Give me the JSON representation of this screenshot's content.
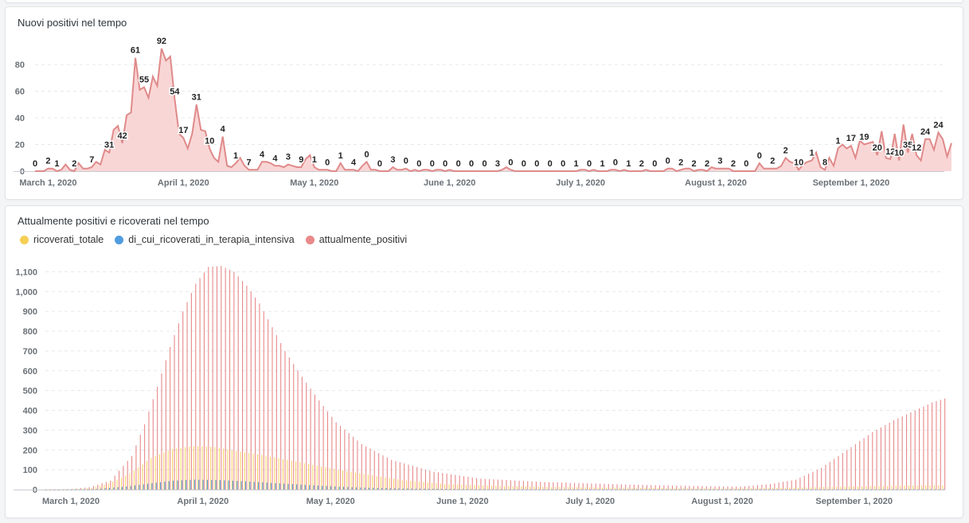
{
  "colors": {
    "positivi_line": "#e08a8a",
    "positivi_fill": "#f9d6d6",
    "ricoverati": "#f5cf55",
    "terapia_intensiva": "#4f9de0",
    "attualmente_positivi": "#e8898a",
    "grid": "#e6e8eb"
  },
  "chart_data": [
    {
      "type": "area",
      "title": "Nuovi positivi nel tempo",
      "x_start": "2020-02-27",
      "x_end": "2020-09-22",
      "xticks": [
        {
          "date": "2020-03-01",
          "label": "March 1, 2020"
        },
        {
          "date": "2020-04-01",
          "label": "April 1, 2020"
        },
        {
          "date": "2020-05-01",
          "label": "May 1, 2020"
        },
        {
          "date": "2020-06-01",
          "label": "June 1, 2020"
        },
        {
          "date": "2020-07-01",
          "label": "July 1, 2020"
        },
        {
          "date": "2020-08-01",
          "label": "August 1, 2020"
        },
        {
          "date": "2020-09-01",
          "label": "September 1, 2020"
        }
      ],
      "yticks": [
        0,
        20,
        40,
        60,
        80
      ],
      "ylim": [
        0,
        92
      ],
      "grid": true,
      "series": [
        {
          "values": [
            0,
            0,
            0,
            2,
            2,
            0,
            1,
            5,
            1,
            0,
            6,
            2,
            2,
            3,
            7,
            5,
            16,
            14,
            31,
            34,
            21,
            42,
            44,
            85,
            61,
            63,
            55,
            71,
            64,
            92,
            83,
            86,
            54,
            28,
            25,
            17,
            28,
            50,
            31,
            30,
            17,
            10,
            7,
            26,
            4,
            3,
            6,
            10,
            4,
            1,
            1,
            1,
            7,
            7,
            6,
            4,
            4,
            3,
            5,
            4,
            3,
            3,
            9,
            12,
            3,
            1,
            1,
            1,
            0,
            0,
            6,
            1,
            1,
            1,
            0,
            4,
            7,
            1,
            1,
            0,
            0,
            0,
            3,
            1,
            1,
            2,
            0,
            1,
            0,
            1,
            1,
            0,
            1,
            1,
            0,
            1,
            0,
            0,
            0,
            0,
            0,
            0,
            0,
            0,
            0,
            0,
            0,
            1,
            3,
            1,
            0,
            0,
            0,
            0,
            0,
            0,
            0,
            0,
            0,
            0,
            0,
            0,
            0,
            0,
            0,
            1,
            1,
            0,
            1,
            0,
            0,
            0,
            1,
            1,
            0,
            1,
            0,
            0,
            0,
            0,
            1,
            0,
            0,
            0,
            0,
            2,
            2,
            0,
            1,
            2,
            2,
            0,
            1,
            1,
            0,
            3,
            2,
            2,
            2,
            2,
            0,
            0,
            0,
            0,
            0,
            0,
            6,
            2,
            2,
            2,
            2,
            4,
            10,
            7,
            6,
            1,
            5,
            7,
            8,
            14,
            3,
            1,
            10,
            4,
            17,
            20,
            17,
            19,
            10,
            23,
            20,
            21,
            22,
            12,
            30,
            10,
            9,
            28,
            8,
            35,
            14,
            28,
            12,
            8,
            24,
            24,
            16,
            29,
            24,
            11,
            21
          ]
        }
      ],
      "data_labels": [
        {
          "date": "2020-02-27",
          "text": "0"
        },
        {
          "date": "2020-03-01",
          "text": "2"
        },
        {
          "date": "2020-03-03",
          "text": "1"
        },
        {
          "date": "2020-03-07",
          "text": "2"
        },
        {
          "date": "2020-03-11",
          "text": "7"
        },
        {
          "date": "2020-03-15",
          "text": "31"
        },
        {
          "date": "2020-03-18",
          "text": "42"
        },
        {
          "date": "2020-03-21",
          "text": "61"
        },
        {
          "date": "2020-03-23",
          "text": "55"
        },
        {
          "date": "2020-03-27",
          "text": "92"
        },
        {
          "date": "2020-03-30",
          "text": "54"
        },
        {
          "date": "2020-04-01",
          "text": "17"
        },
        {
          "date": "2020-04-04",
          "text": "31"
        },
        {
          "date": "2020-04-07",
          "text": "10"
        },
        {
          "date": "2020-04-10",
          "text": "4"
        },
        {
          "date": "2020-04-13",
          "text": "1"
        },
        {
          "date": "2020-04-16",
          "text": "7"
        },
        {
          "date": "2020-04-19",
          "text": "4"
        },
        {
          "date": "2020-04-22",
          "text": "4"
        },
        {
          "date": "2020-04-25",
          "text": "3"
        },
        {
          "date": "2020-04-28",
          "text": "9"
        },
        {
          "date": "2020-05-01",
          "text": "1"
        },
        {
          "date": "2020-05-04",
          "text": "0"
        },
        {
          "date": "2020-05-07",
          "text": "1"
        },
        {
          "date": "2020-05-10",
          "text": "4"
        },
        {
          "date": "2020-05-13",
          "text": "0"
        },
        {
          "date": "2020-05-16",
          "text": "0"
        },
        {
          "date": "2020-05-19",
          "text": "3"
        },
        {
          "date": "2020-05-22",
          "text": "0"
        },
        {
          "date": "2020-05-25",
          "text": "0"
        },
        {
          "date": "2020-05-28",
          "text": "0"
        },
        {
          "date": "2020-05-31",
          "text": "0"
        },
        {
          "date": "2020-06-03",
          "text": "0"
        },
        {
          "date": "2020-06-06",
          "text": "0"
        },
        {
          "date": "2020-06-09",
          "text": "0"
        },
        {
          "date": "2020-06-12",
          "text": "3"
        },
        {
          "date": "2020-06-15",
          "text": "0"
        },
        {
          "date": "2020-06-18",
          "text": "0"
        },
        {
          "date": "2020-06-21",
          "text": "0"
        },
        {
          "date": "2020-06-24",
          "text": "0"
        },
        {
          "date": "2020-06-27",
          "text": "0"
        },
        {
          "date": "2020-06-30",
          "text": "1"
        },
        {
          "date": "2020-07-03",
          "text": "0"
        },
        {
          "date": "2020-07-06",
          "text": "1"
        },
        {
          "date": "2020-07-09",
          "text": "0"
        },
        {
          "date": "2020-07-12",
          "text": "1"
        },
        {
          "date": "2020-07-15",
          "text": "2"
        },
        {
          "date": "2020-07-18",
          "text": "0"
        },
        {
          "date": "2020-07-21",
          "text": "0"
        },
        {
          "date": "2020-07-24",
          "text": "2"
        },
        {
          "date": "2020-07-27",
          "text": "2"
        },
        {
          "date": "2020-07-30",
          "text": "2"
        },
        {
          "date": "2020-08-02",
          "text": "3"
        },
        {
          "date": "2020-08-05",
          "text": "2"
        },
        {
          "date": "2020-08-08",
          "text": "0"
        },
        {
          "date": "2020-08-11",
          "text": "0"
        },
        {
          "date": "2020-08-14",
          "text": "2"
        },
        {
          "date": "2020-08-17",
          "text": "2"
        },
        {
          "date": "2020-08-20",
          "text": "10"
        },
        {
          "date": "2020-08-23",
          "text": "1"
        },
        {
          "date": "2020-08-26",
          "text": "8"
        },
        {
          "date": "2020-08-29",
          "text": "1"
        },
        {
          "date": "2020-09-01",
          "text": "17"
        },
        {
          "date": "2020-09-04",
          "text": "19"
        },
        {
          "date": "2020-09-07",
          "text": "20"
        },
        {
          "date": "2020-09-10",
          "text": "12"
        },
        {
          "date": "2020-09-12",
          "text": "10"
        },
        {
          "date": "2020-09-14",
          "text": "35"
        },
        {
          "date": "2020-09-16",
          "text": "12"
        },
        {
          "date": "2020-09-18",
          "text": "24"
        },
        {
          "date": "2020-09-21",
          "text": "24"
        }
      ]
    },
    {
      "type": "bar",
      "title": "Attualmente positivi e ricoverati nel tempo",
      "legend_position": "top-left",
      "grid": true,
      "x_start": "2020-02-24",
      "x_end": "2020-09-22",
      "xticks": [
        {
          "date": "2020-03-01",
          "label": "March 1, 2020"
        },
        {
          "date": "2020-04-01",
          "label": "April 1, 2020"
        },
        {
          "date": "2020-05-01",
          "label": "May 1, 2020"
        },
        {
          "date": "2020-06-01",
          "label": "June 1, 2020"
        },
        {
          "date": "2020-07-01",
          "label": "July 1, 2020"
        },
        {
          "date": "2020-08-01",
          "label": "August 1, 2020"
        },
        {
          "date": "2020-09-01",
          "label": "September 1, 2020"
        }
      ],
      "yticks": [
        {
          "value": 0,
          "label": "0"
        },
        {
          "value": 100,
          "label": "100"
        },
        {
          "value": 200,
          "label": "200"
        },
        {
          "value": 300,
          "label": "300"
        },
        {
          "value": 400,
          "label": "400"
        },
        {
          "value": 500,
          "label": "500"
        },
        {
          "value": 600,
          "label": "600"
        },
        {
          "value": 700,
          "label": "700"
        },
        {
          "value": 800,
          "label": "800"
        },
        {
          "value": 900,
          "label": "900"
        },
        {
          "value": 1000,
          "label": "1,000"
        },
        {
          "value": 1100,
          "label": "1,100"
        }
      ],
      "ylim": [
        0,
        1150
      ],
      "series_names": [
        "ricoverati_totale",
        "di_cui_ricoverati_in_terapia_intensiva",
        "attualmente_positivi"
      ],
      "series": [
        {
          "name": "attualmente_positivi",
          "points": [
            [
              "2020-02-24",
              0
            ],
            [
              "2020-03-01",
              3
            ],
            [
              "2020-03-05",
              12
            ],
            [
              "2020-03-10",
              45
            ],
            [
              "2020-03-15",
              170
            ],
            [
              "2020-03-18",
              330
            ],
            [
              "2020-03-21",
              520
            ],
            [
              "2020-03-24",
              720
            ],
            [
              "2020-03-27",
              900
            ],
            [
              "2020-03-30",
              1040
            ],
            [
              "2020-04-02",
              1125
            ],
            [
              "2020-04-05",
              1130
            ],
            [
              "2020-04-08",
              1100
            ],
            [
              "2020-04-11",
              1030
            ],
            [
              "2020-04-14",
              940
            ],
            [
              "2020-04-17",
              820
            ],
            [
              "2020-04-20",
              700
            ],
            [
              "2020-04-24",
              570
            ],
            [
              "2020-04-28",
              450
            ],
            [
              "2020-05-02",
              340
            ],
            [
              "2020-05-08",
              230
            ],
            [
              "2020-05-15",
              150
            ],
            [
              "2020-05-25",
              90
            ],
            [
              "2020-06-05",
              55
            ],
            [
              "2020-06-20",
              38
            ],
            [
              "2020-07-10",
              25
            ],
            [
              "2020-07-25",
              18
            ],
            [
              "2020-08-05",
              15
            ],
            [
              "2020-08-12",
              28
            ],
            [
              "2020-08-18",
              50
            ],
            [
              "2020-08-24",
              110
            ],
            [
              "2020-08-30",
              200
            ],
            [
              "2020-09-05",
              290
            ],
            [
              "2020-09-10",
              350
            ],
            [
              "2020-09-15",
              400
            ],
            [
              "2020-09-19",
              440
            ],
            [
              "2020-09-22",
              460
            ]
          ]
        },
        {
          "name": "ricoverati_totale",
          "points": [
            [
              "2020-02-24",
              0
            ],
            [
              "2020-03-01",
              1
            ],
            [
              "2020-03-06",
              8
            ],
            [
              "2020-03-10",
              30
            ],
            [
              "2020-03-15",
              80
            ],
            [
              "2020-03-20",
              160
            ],
            [
              "2020-03-25",
              205
            ],
            [
              "2020-03-30",
              220
            ],
            [
              "2020-04-04",
              215
            ],
            [
              "2020-04-09",
              195
            ],
            [
              "2020-04-15",
              175
            ],
            [
              "2020-04-21",
              150
            ],
            [
              "2020-04-27",
              125
            ],
            [
              "2020-05-03",
              100
            ],
            [
              "2020-05-10",
              75
            ],
            [
              "2020-05-18",
              48
            ],
            [
              "2020-05-28",
              28
            ],
            [
              "2020-06-10",
              18
            ],
            [
              "2020-06-25",
              12
            ],
            [
              "2020-07-15",
              8
            ],
            [
              "2020-08-01",
              6
            ],
            [
              "2020-08-20",
              10
            ],
            [
              "2020-09-01",
              16
            ],
            [
              "2020-09-22",
              22
            ]
          ]
        },
        {
          "name": "di_cui_ricoverati_in_terapia_intensiva",
          "points": [
            [
              "2020-02-24",
              0
            ],
            [
              "2020-03-01",
              0
            ],
            [
              "2020-03-06",
              2
            ],
            [
              "2020-03-10",
              8
            ],
            [
              "2020-03-15",
              18
            ],
            [
              "2020-03-20",
              32
            ],
            [
              "2020-03-25",
              45
            ],
            [
              "2020-03-30",
              50
            ],
            [
              "2020-04-05",
              48
            ],
            [
              "2020-04-12",
              40
            ],
            [
              "2020-04-20",
              30
            ],
            [
              "2020-04-28",
              20
            ],
            [
              "2020-05-08",
              10
            ],
            [
              "2020-05-20",
              5
            ],
            [
              "2020-06-05",
              2
            ],
            [
              "2020-07-01",
              1
            ],
            [
              "2020-08-15",
              1
            ],
            [
              "2020-09-22",
              2
            ]
          ]
        }
      ]
    }
  ]
}
